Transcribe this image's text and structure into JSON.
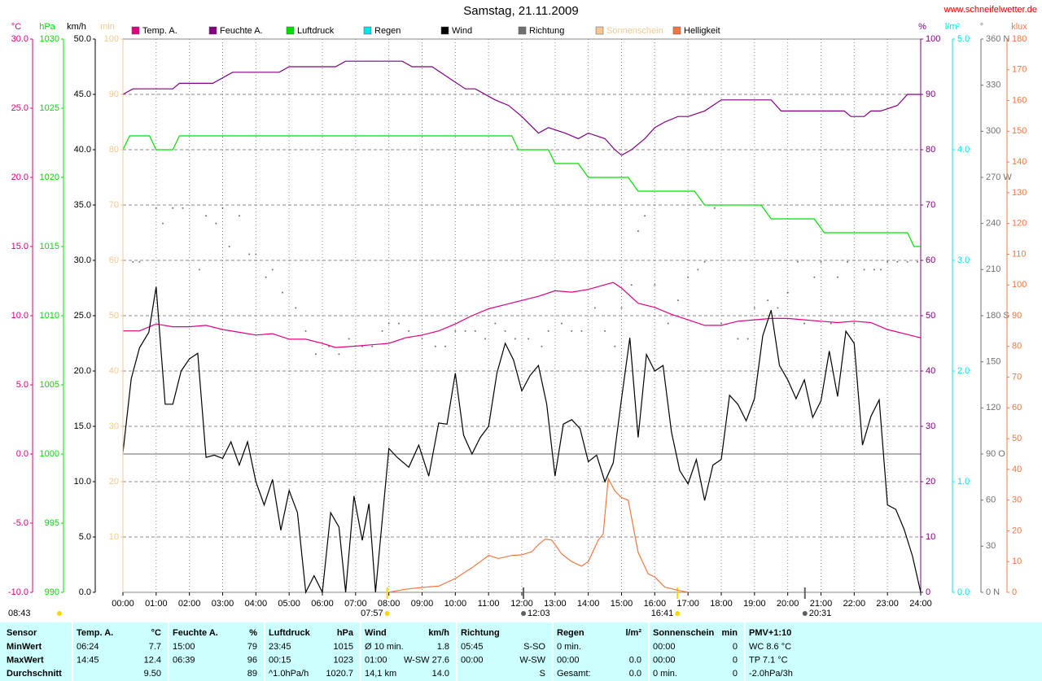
{
  "chart_data": {
    "type": "line",
    "title": "Samstag, 21.11.2009",
    "source": "www.schneifelwetter.de",
    "xlim": [
      0,
      24
    ],
    "xticks": [
      {
        "value": 0,
        "label": "00:00"
      },
      {
        "value": 1,
        "label": "01:00"
      },
      {
        "value": 2,
        "label": "02:00"
      },
      {
        "value": 3,
        "label": "03:00"
      },
      {
        "value": 4,
        "label": "04:00"
      },
      {
        "value": 5,
        "label": "05:00"
      },
      {
        "value": 6,
        "label": "06:00"
      },
      {
        "value": 7,
        "label": "07:00"
      },
      {
        "value": 8,
        "label": "08:00"
      },
      {
        "value": 9,
        "label": "09:00"
      },
      {
        "value": 10,
        "label": "10:00"
      },
      {
        "value": 11,
        "label": "11:00"
      },
      {
        "value": 12,
        "label": "12:00"
      },
      {
        "value": 13,
        "label": "13:00"
      },
      {
        "value": 14,
        "label": "14:00"
      },
      {
        "value": 15,
        "label": "15:00"
      },
      {
        "value": 16,
        "label": "16:00"
      },
      {
        "value": 17,
        "label": "17:00"
      },
      {
        "value": 18,
        "label": "18:00"
      },
      {
        "value": 19,
        "label": "19:00"
      },
      {
        "value": 20,
        "label": "20:00"
      },
      {
        "value": 21,
        "label": "21:00"
      },
      {
        "value": 22,
        "label": "22:00"
      },
      {
        "value": 23,
        "label": "23:00"
      },
      {
        "value": 24,
        "label": "24:00"
      }
    ],
    "grid": true,
    "day_length": "08:43",
    "annotations": [
      {
        "label": "07:57",
        "x": 7.95,
        "color": "#ffd700"
      },
      {
        "label": "12:03",
        "x": 12.05,
        "color": "#606060"
      },
      {
        "label": "16:41",
        "x": 16.683,
        "color": "#ffd700"
      },
      {
        "label": "20:31",
        "x": 20.517,
        "color": "#606060"
      }
    ],
    "series": [
      {
        "name": "Temp. A.",
        "color": "#e0007f",
        "unit": "°C",
        "ylim": [
          -10,
          30
        ],
        "yticks": [
          {
            "value": -10,
            "label": "-10.0"
          },
          {
            "value": -5,
            "label": "-5.0"
          },
          {
            "value": 0,
            "label": "0.0"
          },
          {
            "value": 5,
            "label": "5.0"
          },
          {
            "value": 10,
            "label": "10.0"
          },
          {
            "value": 15,
            "label": "15.0"
          },
          {
            "value": 20,
            "label": "20.0"
          },
          {
            "value": 25,
            "label": "25.0"
          },
          {
            "value": 30,
            "label": "30.0"
          }
        ],
        "x": [
          0,
          0.5,
          1,
          1.5,
          2,
          2.5,
          3,
          3.5,
          4,
          4.5,
          5,
          5.5,
          6,
          6.4,
          7,
          7.5,
          8,
          8.5,
          9,
          9.5,
          10,
          10.5,
          11,
          11.5,
          12,
          12.5,
          13,
          13.5,
          14,
          14.75,
          15,
          15.5,
          16,
          16.5,
          17,
          17.5,
          18,
          18.5,
          19,
          19.5,
          20,
          20.5,
          21,
          21.5,
          22,
          22.5,
          23,
          23.5,
          24
        ],
        "values": [
          8.9,
          8.9,
          9.4,
          9.2,
          9.2,
          9.3,
          9.0,
          8.8,
          8.6,
          8.7,
          8.3,
          8.3,
          8.0,
          7.7,
          7.8,
          7.9,
          8.0,
          8.4,
          8.6,
          8.9,
          9.4,
          10.0,
          10.5,
          10.8,
          11.1,
          11.4,
          11.8,
          11.7,
          11.9,
          12.4,
          12.0,
          10.9,
          10.6,
          10.1,
          9.7,
          9.3,
          9.3,
          9.6,
          9.7,
          9.8,
          9.8,
          9.7,
          9.6,
          9.5,
          9.6,
          9.5,
          9.0,
          8.7,
          8.4
        ]
      },
      {
        "name": "Feuchte A.",
        "color": "#800080",
        "unit": "%",
        "ylim": [
          0,
          100
        ],
        "yticks": [
          0,
          10,
          20,
          30,
          40,
          50,
          60,
          70,
          80,
          90,
          100
        ],
        "x": [
          0,
          0.3,
          1.5,
          1.7,
          2.7,
          3.3,
          4.7,
          5,
          6.4,
          6.7,
          8.4,
          8.7,
          9.3,
          9.8,
          10.3,
          10.6,
          11.2,
          11.6,
          12,
          12.5,
          12.8,
          13.3,
          13.7,
          14,
          14.5,
          14.8,
          15,
          15.3,
          15.7,
          16,
          16.3,
          16.7,
          17,
          17.5,
          18,
          19.5,
          19.8,
          21.7,
          21.9,
          22.3,
          22.5,
          22.8,
          23.3,
          23.6,
          24
        ],
        "values": [
          90,
          91,
          91,
          92,
          92,
          94,
          94,
          95,
          95,
          96,
          96,
          95,
          95,
          93,
          91,
          91,
          89,
          88,
          86,
          83,
          84,
          83,
          82,
          83,
          82,
          80,
          79,
          80,
          82,
          84,
          85,
          86,
          86,
          87,
          89,
          89,
          87,
          87,
          86,
          86,
          87,
          87,
          88,
          90,
          90
        ]
      },
      {
        "name": "Luftdruck",
        "color": "#00e000",
        "unit": "hPa",
        "ylim": [
          990,
          1030
        ],
        "yticks": [
          990,
          995,
          1000,
          1005,
          1010,
          1015,
          1020,
          1025,
          1030
        ],
        "x": [
          0,
          0.2,
          0.8,
          1.0,
          1.5,
          1.7,
          11.7,
          11.9,
          12.8,
          13.0,
          13.7,
          14.0,
          15.2,
          15.5,
          17.2,
          17.5,
          19.2,
          19.5,
          20.8,
          21.1,
          23.6,
          23.8,
          24
        ],
        "values": [
          1022,
          1023,
          1023,
          1022,
          1022,
          1023,
          1023,
          1022,
          1022,
          1021,
          1021,
          1020,
          1020,
          1019,
          1019,
          1018,
          1018,
          1017,
          1017,
          1016,
          1016,
          1015,
          1015
        ]
      },
      {
        "name": "Regen",
        "color": "#00e8e8",
        "unit": "l/m²",
        "ylim": [
          0,
          5
        ],
        "yticks": [
          {
            "value": 0,
            "label": "0.0"
          },
          {
            "value": 1,
            "label": "1.0"
          },
          {
            "value": 2,
            "label": "2.0"
          },
          {
            "value": 3,
            "label": "3.0"
          },
          {
            "value": 4,
            "label": "4.0"
          },
          {
            "value": 5,
            "label": "5.0"
          }
        ],
        "x": [],
        "values": []
      },
      {
        "name": "Wind",
        "color": "#000000",
        "unit": "km/h",
        "ylim": [
          0,
          50
        ],
        "yticks": [
          {
            "value": 0,
            "label": "0.0"
          },
          {
            "value": 5,
            "label": "5.0"
          },
          {
            "value": 10,
            "label": "10.0"
          },
          {
            "value": 15,
            "label": "15.0"
          },
          {
            "value": 20,
            "label": "20.0"
          },
          {
            "value": 25,
            "label": "25.0"
          },
          {
            "value": 30,
            "label": "30.0"
          },
          {
            "value": 35,
            "label": "35.0"
          },
          {
            "value": 40,
            "label": "40.0"
          },
          {
            "value": 45,
            "label": "45.0"
          },
          {
            "value": 50,
            "label": "50.0"
          }
        ],
        "x": [
          0,
          0.25,
          0.5,
          0.78,
          1,
          1.27,
          1.5,
          1.75,
          2,
          2.25,
          2.5,
          2.75,
          3,
          3.25,
          3.5,
          3.75,
          4,
          4.25,
          4.5,
          4.75,
          5,
          5.25,
          5.5,
          5.75,
          6,
          6.25,
          6.5,
          6.7,
          6.95,
          7.2,
          7.4,
          7.6,
          8,
          8.25,
          8.6,
          8.9,
          9.2,
          9.5,
          9.75,
          10,
          10.25,
          10.5,
          10.75,
          11,
          11.25,
          11.5,
          11.75,
          12,
          12.25,
          12.5,
          12.75,
          13,
          13.25,
          13.5,
          13.75,
          14,
          14.25,
          14.5,
          14.75,
          15,
          15.25,
          15.5,
          15.75,
          16,
          16.25,
          16.5,
          16.75,
          17,
          17.25,
          17.5,
          17.75,
          18,
          18.25,
          18.5,
          18.75,
          19,
          19.25,
          19.5,
          19.75,
          20,
          20.25,
          20.5,
          20.75,
          21,
          21.25,
          21.5,
          21.75,
          22,
          22.25,
          22.5,
          22.75,
          23,
          23.25,
          23.5,
          23.75,
          24
        ],
        "values": [
          12.6,
          19.3,
          22.1,
          23.5,
          27.6,
          17.0,
          17.0,
          20.0,
          21.1,
          21.6,
          12.2,
          12.4,
          12.1,
          13.6,
          11.5,
          13.6,
          10.0,
          7.9,
          10.2,
          5.6,
          9.2,
          7.2,
          0,
          1.5,
          0,
          7.2,
          5.9,
          0,
          8.7,
          4.7,
          8.0,
          0,
          13.0,
          12.2,
          11.3,
          13.3,
          10.5,
          15.3,
          15.2,
          19.8,
          14.2,
          12.5,
          14.0,
          15.0,
          19.8,
          22.5,
          21.0,
          18.2,
          19.6,
          20.5,
          17.0,
          10.5,
          15.2,
          15.6,
          14.8,
          11.8,
          12.4,
          10.0,
          11.7,
          17.5,
          23.0,
          14.0,
          21.5,
          20.0,
          20.5,
          14.5,
          11.0,
          9.8,
          12.0,
          8.3,
          11.5,
          12.0,
          17.8,
          17.0,
          15.5,
          17.5,
          23.2,
          25.5,
          20.5,
          19.2,
          17.5,
          19.2,
          15.8,
          17.3,
          21.8,
          17.7,
          23.6,
          22.5,
          13.3,
          15.9,
          17.4,
          7.9,
          7.5,
          5.7,
          3.3,
          0
        ]
      },
      {
        "name": "Richtung",
        "color": "#707070",
        "unit": "°",
        "type": "scatter",
        "ylim": [
          0,
          360
        ],
        "yticks": [
          {
            "value": 0,
            "label": "0 N"
          },
          30,
          60,
          {
            "value": 90,
            "label": "90 O"
          },
          120,
          150,
          {
            "value": 180,
            "label": "180 S"
          },
          210,
          240,
          {
            "value": 270,
            "label": "270 W"
          },
          300,
          330,
          {
            "value": 360,
            "label": "360 N"
          }
        ],
        "x": [
          0.3,
          0.5,
          1.0,
          1.2,
          1.5,
          1.8,
          2.3,
          2.5,
          2.8,
          3.0,
          3.2,
          3.5,
          3.8,
          4.0,
          4.3,
          4.5,
          4.8,
          5.2,
          5.5,
          5.8,
          6.2,
          6.5,
          6.8,
          7.2,
          7.5,
          7.8,
          8.0,
          8.3,
          8.6,
          9.0,
          9.4,
          9.7,
          10.0,
          10.3,
          10.6,
          10.9,
          11.2,
          11.5,
          11.8,
          12.2,
          12.6,
          12.8,
          13.2,
          13.5,
          13.8,
          14.2,
          14.5,
          14.8,
          15.0,
          15.3,
          15.5,
          15.7,
          16.0,
          16.4,
          16.7,
          17.0,
          17.3,
          17.5,
          17.8,
          18.0,
          18.5,
          18.8,
          19.0,
          19.4,
          19.7,
          20.0,
          20.3,
          20.5,
          20.8,
          21.0,
          21.3,
          21.5,
          21.8,
          22.0,
          22.3,
          22.6,
          22.8,
          23.0,
          23.3,
          23.6,
          23.9
        ],
        "values": [
          215,
          215,
          250,
          240,
          250,
          250,
          210,
          245,
          240,
          250,
          225,
          245,
          220,
          220,
          205,
          210,
          195,
          185,
          170,
          155,
          160,
          155,
          165,
          160,
          160,
          170,
          175,
          175,
          170,
          165,
          160,
          160,
          170,
          170,
          170,
          165,
          175,
          170,
          165,
          165,
          160,
          170,
          175,
          170,
          170,
          185,
          170,
          160,
          185,
          200,
          235,
          245,
          200,
          175,
          190,
          205,
          210,
          215,
          250,
          175,
          165,
          165,
          185,
          190,
          185,
          195,
          215,
          175,
          205,
          215,
          175,
          205,
          215,
          175,
          210,
          210,
          210,
          215,
          215,
          215,
          215
        ]
      },
      {
        "name": "Sonnenschein",
        "color": "#f5c890",
        "unit": "min",
        "ylim": [
          0,
          100
        ],
        "yticks": [
          10,
          20,
          30,
          40,
          50,
          60,
          70,
          80,
          90,
          100
        ],
        "x": [],
        "values": []
      },
      {
        "name": "Helligkeit",
        "color": "#f07840",
        "unit": "klux",
        "ylim": [
          0,
          180
        ],
        "yticks": [
          0,
          10,
          20,
          30,
          40,
          50,
          60,
          70,
          80,
          90,
          100,
          110,
          120,
          130,
          140,
          150,
          160,
          170,
          180
        ],
        "x": [
          8,
          8.5,
          9,
          9.5,
          10,
          10.5,
          11,
          11.3,
          11.7,
          12,
          12.3,
          12.5,
          12.7,
          12.9,
          13.2,
          13.5,
          13.8,
          14,
          14.3,
          14.45,
          14.6,
          14.8,
          15,
          15.2,
          15.5,
          15.8,
          16,
          16.3,
          16.7,
          17
        ],
        "values": [
          0,
          1,
          1.6,
          2,
          4.5,
          8,
          12,
          11,
          12,
          12.2,
          13.2,
          15.5,
          17.3,
          17,
          12.5,
          10,
          8.5,
          10,
          17,
          19,
          37,
          33,
          30.8,
          30,
          13,
          6,
          5,
          1.7,
          0.7,
          0
        ]
      }
    ]
  },
  "table": {
    "header": [
      "Sensor",
      {
        "l": "Temp. A.",
        "r": "°C"
      },
      {
        "l": "Feuchte A.",
        "r": "%"
      },
      {
        "l": "Luftdruck",
        "r": "hPa"
      },
      {
        "l": "Wind",
        "r": "km/h"
      },
      "Richtung",
      {
        "l": "Regen",
        "r": "l/m²"
      },
      {
        "l": "Sonnenschein",
        "r": "min"
      },
      "PMV+1:10"
    ],
    "rows": [
      [
        "MinWert",
        {
          "l": "06:24",
          "r": "7.7"
        },
        {
          "l": "15:00",
          "r": "79"
        },
        {
          "l": "23:45",
          "r": "1015"
        },
        {
          "l": "Ø 10 min.",
          "r": "1.8"
        },
        {
          "l": "05:45",
          "r": "S-SO"
        },
        "0 min.",
        {
          "l": "00:00",
          "r": "0"
        },
        "WC 8.6 °C"
      ],
      [
        "MaxWert",
        {
          "l": "14:45",
          "r": "12.4"
        },
        {
          "l": "06:39",
          "r": "96"
        },
        {
          "l": "00:15",
          "r": "1023"
        },
        {
          "l": "01:00",
          "r": "W-SW 27.6"
        },
        {
          "l": "00:00",
          "r": "W-SW"
        },
        {
          "l": "00:00",
          "r": "0.0"
        },
        {
          "l": "00:00",
          "r": "0"
        },
        "TP 7.1 °C"
      ],
      [
        "Durchschnitt",
        {
          "r": "9.50"
        },
        {
          "r": "89"
        },
        {
          "l": "^1.0hPa/h",
          "r": "1020.7"
        },
        {
          "l": "14,1 km",
          "r": "14.0"
        },
        {
          "r": "S"
        },
        {
          "l": "Gesamt:",
          "r": "0.0"
        },
        {
          "l": "0 min.",
          "r": "0"
        },
        "-2.0hPa/3h"
      ]
    ]
  }
}
